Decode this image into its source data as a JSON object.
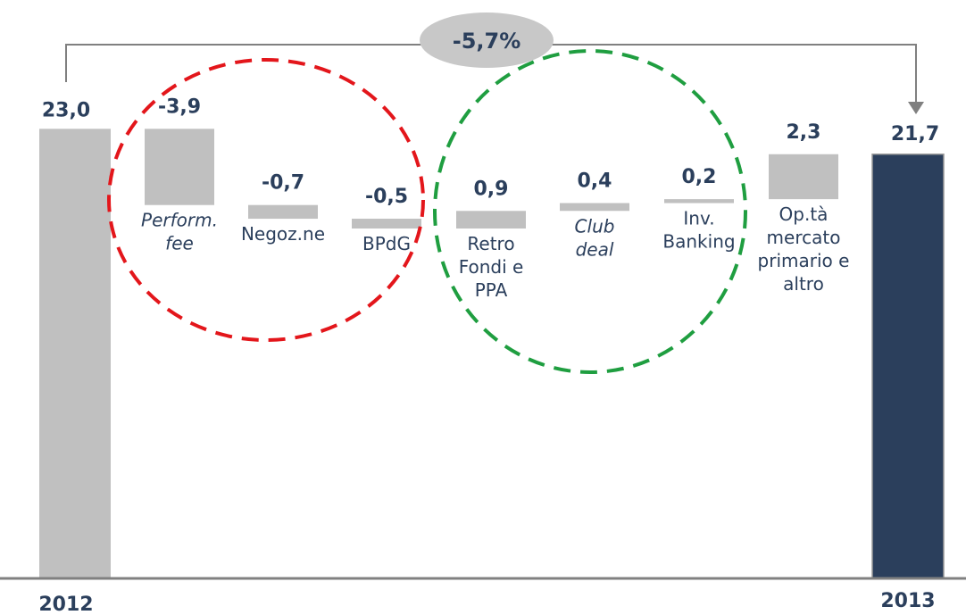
{
  "chart_data": {
    "type": "waterfall",
    "start": {
      "label": "2012",
      "value": 23.0,
      "value_label": "23,0"
    },
    "end": {
      "label": "2013",
      "value": 21.7,
      "value_label": "21,7"
    },
    "steps": [
      {
        "label": [
          "Perform.",
          "fee"
        ],
        "italic": true,
        "value": -3.9,
        "value_label": "-3,9"
      },
      {
        "label": [
          "Negoz.ne"
        ],
        "italic": false,
        "value": -0.7,
        "value_label": "-0,7"
      },
      {
        "label": [
          "BPdG"
        ],
        "italic": false,
        "value": -0.5,
        "value_label": "-0,5"
      },
      {
        "label": [
          "Retro",
          "Fondi e",
          "PPA"
        ],
        "italic": false,
        "value": 0.9,
        "value_label": "0,9"
      },
      {
        "label": [
          "Club",
          "deal"
        ],
        "italic": true,
        "value": 0.4,
        "value_label": "0,4"
      },
      {
        "label": [
          "Inv.",
          "Banking"
        ],
        "italic": false,
        "value": 0.2,
        "value_label": "0,2"
      },
      {
        "label": [
          "Op.tà",
          "mercato",
          "primario e",
          "altro"
        ],
        "italic": false,
        "value": 2.3,
        "value_label": "2,3"
      }
    ],
    "change_label": "-5,7%",
    "groups": [
      {
        "steps": [
          0,
          1,
          2
        ],
        "color": "#e3161b",
        "style": "dashed"
      },
      {
        "steps": [
          3,
          4,
          5
        ],
        "color": "#1f9e40",
        "style": "dashed"
      }
    ],
    "colors": {
      "start": "#c0c0c0",
      "steps": "#c0c0c0",
      "end": "#2b3f5c",
      "text": "#2b3f5c",
      "badge": "#c8c8c8",
      "connector": "#808080"
    }
  }
}
